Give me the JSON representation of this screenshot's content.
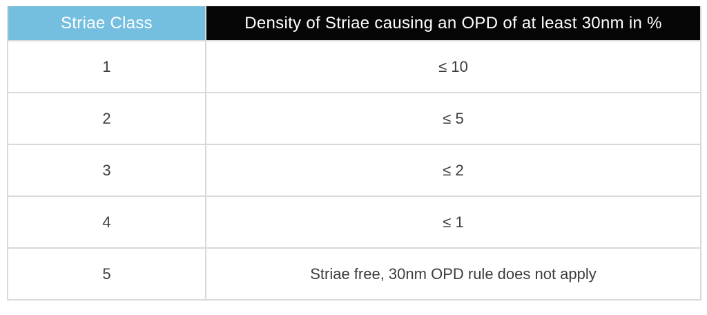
{
  "table": {
    "header": {
      "col1": "Striae Class",
      "col2": "Density of Striae causing an OPD of at least 30nm in %"
    },
    "rows": [
      {
        "striae_class": "1",
        "density": "≤ 10"
      },
      {
        "striae_class": "2",
        "density": "≤ 5"
      },
      {
        "striae_class": "3",
        "density": "≤ 2"
      },
      {
        "striae_class": "4",
        "density": "≤ 1"
      },
      {
        "striae_class": "5",
        "density": "Striae free, 30nm OPD rule does not apply"
      }
    ]
  },
  "colors": {
    "header_class_bg": "#74bfe0",
    "header_density_bg": "#060606",
    "header_text": "#ffffff",
    "body_text": "#3c3c3c",
    "grid_border": "#d9d9d9",
    "page_background": "#ffffff"
  }
}
